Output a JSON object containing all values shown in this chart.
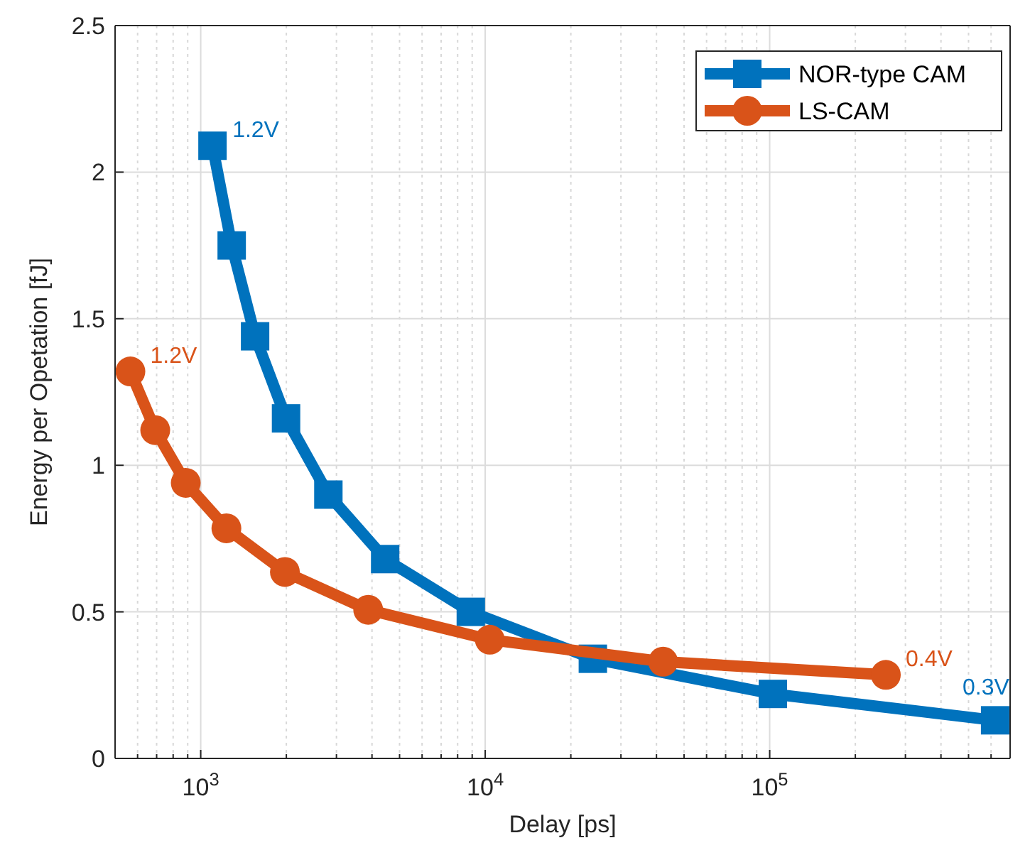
{
  "chart_data": {
    "type": "line",
    "xlabel": "Delay [ps]",
    "ylabel": "Energy per Opetation [fJ]",
    "log": "x",
    "grid": true,
    "legend": "top right",
    "line_style": "solid",
    "xlim": [
      500,
      700000
    ],
    "xticks": [
      {
        "value": 1000,
        "label": "10$^{3}$"
      },
      {
        "value": 10000,
        "label": "10$^{4}$"
      },
      {
        "value": 100000,
        "label": "10$^{5}$"
      }
    ],
    "ylim": [
      0,
      2.5
    ],
    "yticks": [
      0,
      0.5,
      1,
      1.5,
      2,
      2.5
    ],
    "series": [
      {
        "name": "NOR-type CAM",
        "color": "#0072bd",
        "marker": "square",
        "x": [
          1100,
          1285,
          1553,
          1995,
          2810,
          4450,
          8900,
          23900,
          102600,
          620000
        ],
        "values": [
          2.09,
          1.75,
          1.44,
          1.16,
          0.9,
          0.68,
          0.5,
          0.34,
          0.22,
          0.13
        ]
      },
      {
        "name": "LS-CAM",
        "color": "#d95319",
        "marker": "circle",
        "x": [
          566,
          692,
          886,
          1231,
          1977,
          3880,
          10380,
          42200,
          256000
        ],
        "values": [
          1.32,
          1.12,
          0.94,
          0.785,
          0.636,
          0.507,
          0.405,
          0.33,
          0.285
        ]
      }
    ],
    "annotations": [
      {
        "text": "1.2V",
        "x": 1100,
        "y": 2.09
      },
      {
        "text": "0.3V",
        "x": 620000,
        "y": 0.13
      },
      {
        "text": "1.2V",
        "x": 566,
        "y": 1.32
      },
      {
        "text": "0.4V",
        "x": 256000,
        "y": 0.285
      }
    ]
  }
}
